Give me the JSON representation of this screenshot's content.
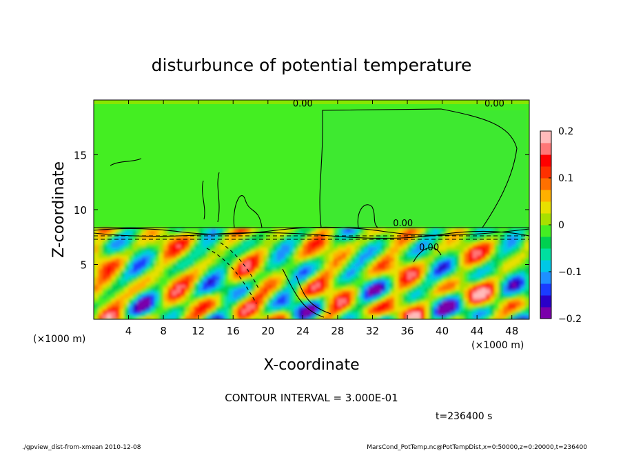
{
  "chart_data": {
    "type": "heatmap",
    "title": "disturbunce of potential temperature",
    "xlabel": "X-coordinate",
    "ylabel": "Z-coordinate",
    "x_unit": "(×1000 m)",
    "y_unit": "(×1000 m)",
    "xlim": [
      0,
      50
    ],
    "ylim": [
      0,
      20
    ],
    "x_ticks": [
      4,
      8,
      12,
      16,
      20,
      24,
      28,
      32,
      36,
      40,
      44,
      48
    ],
    "y_ticks": [
      5,
      10,
      15
    ],
    "colorbar": {
      "min": -0.2,
      "max": 0.2,
      "tick_labels": [
        "0.2",
        "0.1",
        "0",
        "−0.1",
        "−0.2"
      ],
      "tick_values": [
        0.2,
        0.1,
        0,
        -0.1,
        -0.2
      ],
      "colors": [
        "#7a00aa",
        "#2a00c8",
        "#1a3cff",
        "#1e90ff",
        "#00c8e6",
        "#00e0a0",
        "#00d050",
        "#44ee22",
        "#a8e000",
        "#e8e000",
        "#ffb000",
        "#ff7000",
        "#ff3000",
        "#ff0000",
        "#ff7777",
        "#ffbbbb"
      ]
    },
    "contour_labels": [
      "0.00",
      "0.00",
      "0.00",
      "0.00"
    ],
    "contour_interval_text": "CONTOUR INTERVAL = 3.000E-01",
    "time_text": "t=236400 s",
    "upper_layer_value": 0.0,
    "mixed_layer_top": 8.3
  },
  "footer": {
    "left": "./gpview_dist-from-xmean  2010-12-08",
    "right": "MarsCond_PotTemp.nc@PotTempDist,x=0:50000,z=0:20000,t=236400"
  }
}
